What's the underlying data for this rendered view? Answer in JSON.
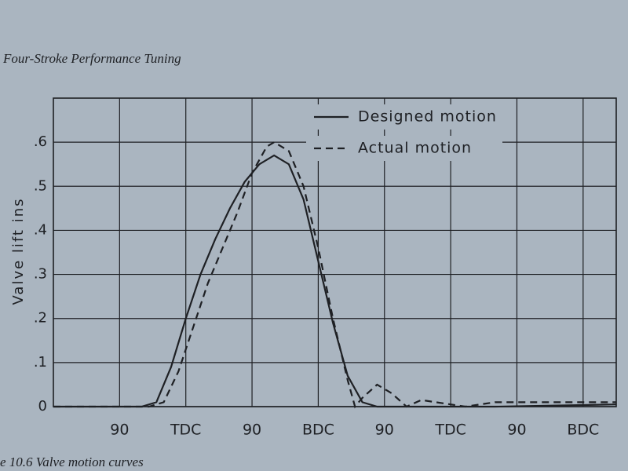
{
  "header": "Four-Stroke Performance Tuning",
  "caption": "e 10.6  Valve motion curves",
  "chart_data": {
    "type": "line",
    "ylabel": "Valve lift ins",
    "xlim": [
      0,
      765
    ],
    "xticks": [
      {
        "value": 90,
        "label": "90"
      },
      {
        "value": 180,
        "label": "TDC"
      },
      {
        "value": 270,
        "label": "90"
      },
      {
        "value": 360,
        "label": "BDC"
      },
      {
        "value": 450,
        "label": "90"
      },
      {
        "value": 540,
        "label": "TDC"
      },
      {
        "value": 630,
        "label": "90"
      },
      {
        "value": 720,
        "label": "BDC"
      }
    ],
    "ylim": [
      0,
      0.7
    ],
    "yticks": [
      0,
      {
        "value": 0.1,
        "label": ".1"
      },
      {
        "value": 0.2,
        "label": ".2"
      },
      {
        "value": 0.3,
        "label": ".3"
      },
      {
        "value": 0.4,
        "label": ".4"
      },
      {
        "value": 0.5,
        "label": ".5"
      },
      {
        "value": 0.6,
        "label": ".6"
      }
    ],
    "grid": true,
    "legend": "top-right",
    "series": [
      {
        "name": "Designed motion",
        "color": "#1e2024",
        "dash": false,
        "x": [
          0,
          120,
          140,
          160,
          180,
          200,
          220,
          240,
          260,
          280,
          300,
          320,
          340,
          360,
          380,
          400,
          420,
          440,
          500,
          600,
          765
        ],
        "values": [
          0,
          0,
          0.01,
          0.09,
          0.2,
          0.3,
          0.38,
          0.45,
          0.51,
          0.55,
          0.57,
          0.55,
          0.47,
          0.33,
          0.19,
          0.07,
          0.01,
          0,
          0,
          0,
          0.005
        ]
      },
      {
        "name": "Actual motion",
        "color": "#1e2024",
        "dash": true,
        "x": [
          0,
          130,
          150,
          170,
          190,
          210,
          230,
          250,
          270,
          290,
          300,
          320,
          340,
          360,
          380,
          400,
          410,
          420,
          440,
          460,
          480,
          500,
          520,
          540,
          560,
          600,
          765
        ],
        "values": [
          0,
          0,
          0.01,
          0.08,
          0.18,
          0.28,
          0.36,
          0.44,
          0.53,
          0.59,
          0.6,
          0.58,
          0.5,
          0.36,
          0.2,
          0.06,
          0,
          0.02,
          0.05,
          0.03,
          0,
          0.015,
          0.01,
          0.005,
          0,
          0.01,
          0.01
        ]
      }
    ]
  }
}
